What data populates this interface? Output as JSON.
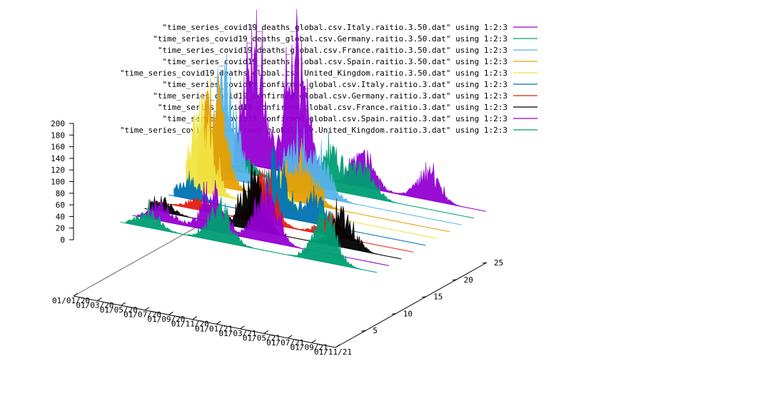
{
  "chart_data": {
    "type": "3d-area",
    "title": "",
    "xlabel": "",
    "ylabel": "",
    "zlabel": "",
    "zlim": [
      0,
      200
    ],
    "z_ticks": [
      "200",
      "180",
      "160",
      "140",
      "120",
      "100",
      "80",
      "60",
      "40",
      "20",
      "0"
    ],
    "x_ticks": [
      "01/01/20",
      "01/03/20",
      "01/05/20",
      "01/07/20",
      "01/09/20",
      "01/11/20",
      "01/01/21",
      "01/03/21",
      "01/05/21",
      "01/07/21",
      "01/09/21",
      "01/11/21"
    ],
    "y_ticks": [
      "5",
      "10",
      "15",
      "20",
      "25"
    ],
    "ylim": [
      0,
      25
    ],
    "grid": false,
    "legend_position": "top-right",
    "series": [
      {
        "name": "\"time_series_covid19_deaths_global.csv.Italy.raitio.3.50.dat\" using 1:2:3",
        "color": "#9400d3",
        "y": 24,
        "peaks": [
          [
            0.13,
            172
          ],
          [
            0.3,
            170
          ],
          [
            0.55,
            50
          ],
          [
            0.8,
            40
          ]
        ],
        "duration": 0.95
      },
      {
        "name": "\"time_series_covid19_deaths_global.csv.Germany.raitio.3.50.dat\" using 1:2:3",
        "color": "#009e73",
        "y": 22,
        "peaks": [
          [
            0.15,
            20
          ],
          [
            0.48,
            55
          ],
          [
            0.6,
            45
          ]
        ],
        "duration": 0.95
      },
      {
        "name": "\"time_series_covid19_deaths_global.csv.France.raitio.3.50.dat\" using 1:2:3",
        "color": "#56b4e9",
        "y": 20,
        "peaks": [
          [
            0.12,
            150
          ],
          [
            0.38,
            60
          ],
          [
            0.48,
            55
          ]
        ],
        "duration": 0.95
      },
      {
        "name": "\"time_series_covid19_deaths_global.csv.Spain.raitio.3.50.dat\" using 1:2:3",
        "color": "#e69f00",
        "y": 18,
        "peaks": [
          [
            0.12,
            145
          ],
          [
            0.4,
            50
          ],
          [
            0.48,
            40
          ]
        ],
        "duration": 0.95
      },
      {
        "name": "\"time_series_covid19_deaths_global.csv.United_Kingdom.raitio.3.50.dat\" using 1:2:3",
        "color": "#f0e442",
        "y": 16,
        "peaks": [
          [
            0.12,
            120
          ],
          [
            0.4,
            55
          ]
        ],
        "duration": 0.95
      },
      {
        "name": "\"time_series_covid19_confirmed_global.csv.Italy.raitio.3.dat\" using 1:2:3",
        "color": "#0072b2",
        "y": 14,
        "peaks": [
          [
            0.12,
            30
          ],
          [
            0.45,
            85
          ],
          [
            0.6,
            40
          ]
        ],
        "duration": 0.95
      },
      {
        "name": "\"time_series_covid19_confirmed_global.csv.Germany.raitio.3.dat\" using 1:2:3",
        "color": "#e51e10",
        "y": 12,
        "peaks": [
          [
            0.2,
            15
          ],
          [
            0.45,
            70
          ],
          [
            0.7,
            30
          ]
        ],
        "duration": 0.95
      },
      {
        "name": "\"time_series_covid19_confirmed_global.csv.France.raitio.3.dat\" using 1:2:3",
        "color": "#000000",
        "y": 10,
        "peaks": [
          [
            0.1,
            20
          ],
          [
            0.45,
            80
          ],
          [
            0.8,
            50
          ]
        ],
        "duration": 0.95
      },
      {
        "name": "\"time_series_covid19_confirmed_global.csv.Spain.raitio.3.dat\" using 1:2:3",
        "color": "#9400d3",
        "y": 8,
        "peaks": [
          [
            0.15,
            25
          ],
          [
            0.35,
            60
          ],
          [
            0.55,
            80
          ]
        ],
        "duration": 0.95
      },
      {
        "name": "\"time_series_covid19_confirmed_global.csv.United_Kingdom.raitio.3.dat\" using 1:2:3",
        "color": "#009e73",
        "y": 6,
        "peaks": [
          [
            0.15,
            25
          ],
          [
            0.42,
            55
          ],
          [
            0.82,
            80
          ]
        ],
        "duration": 0.95
      }
    ]
  }
}
